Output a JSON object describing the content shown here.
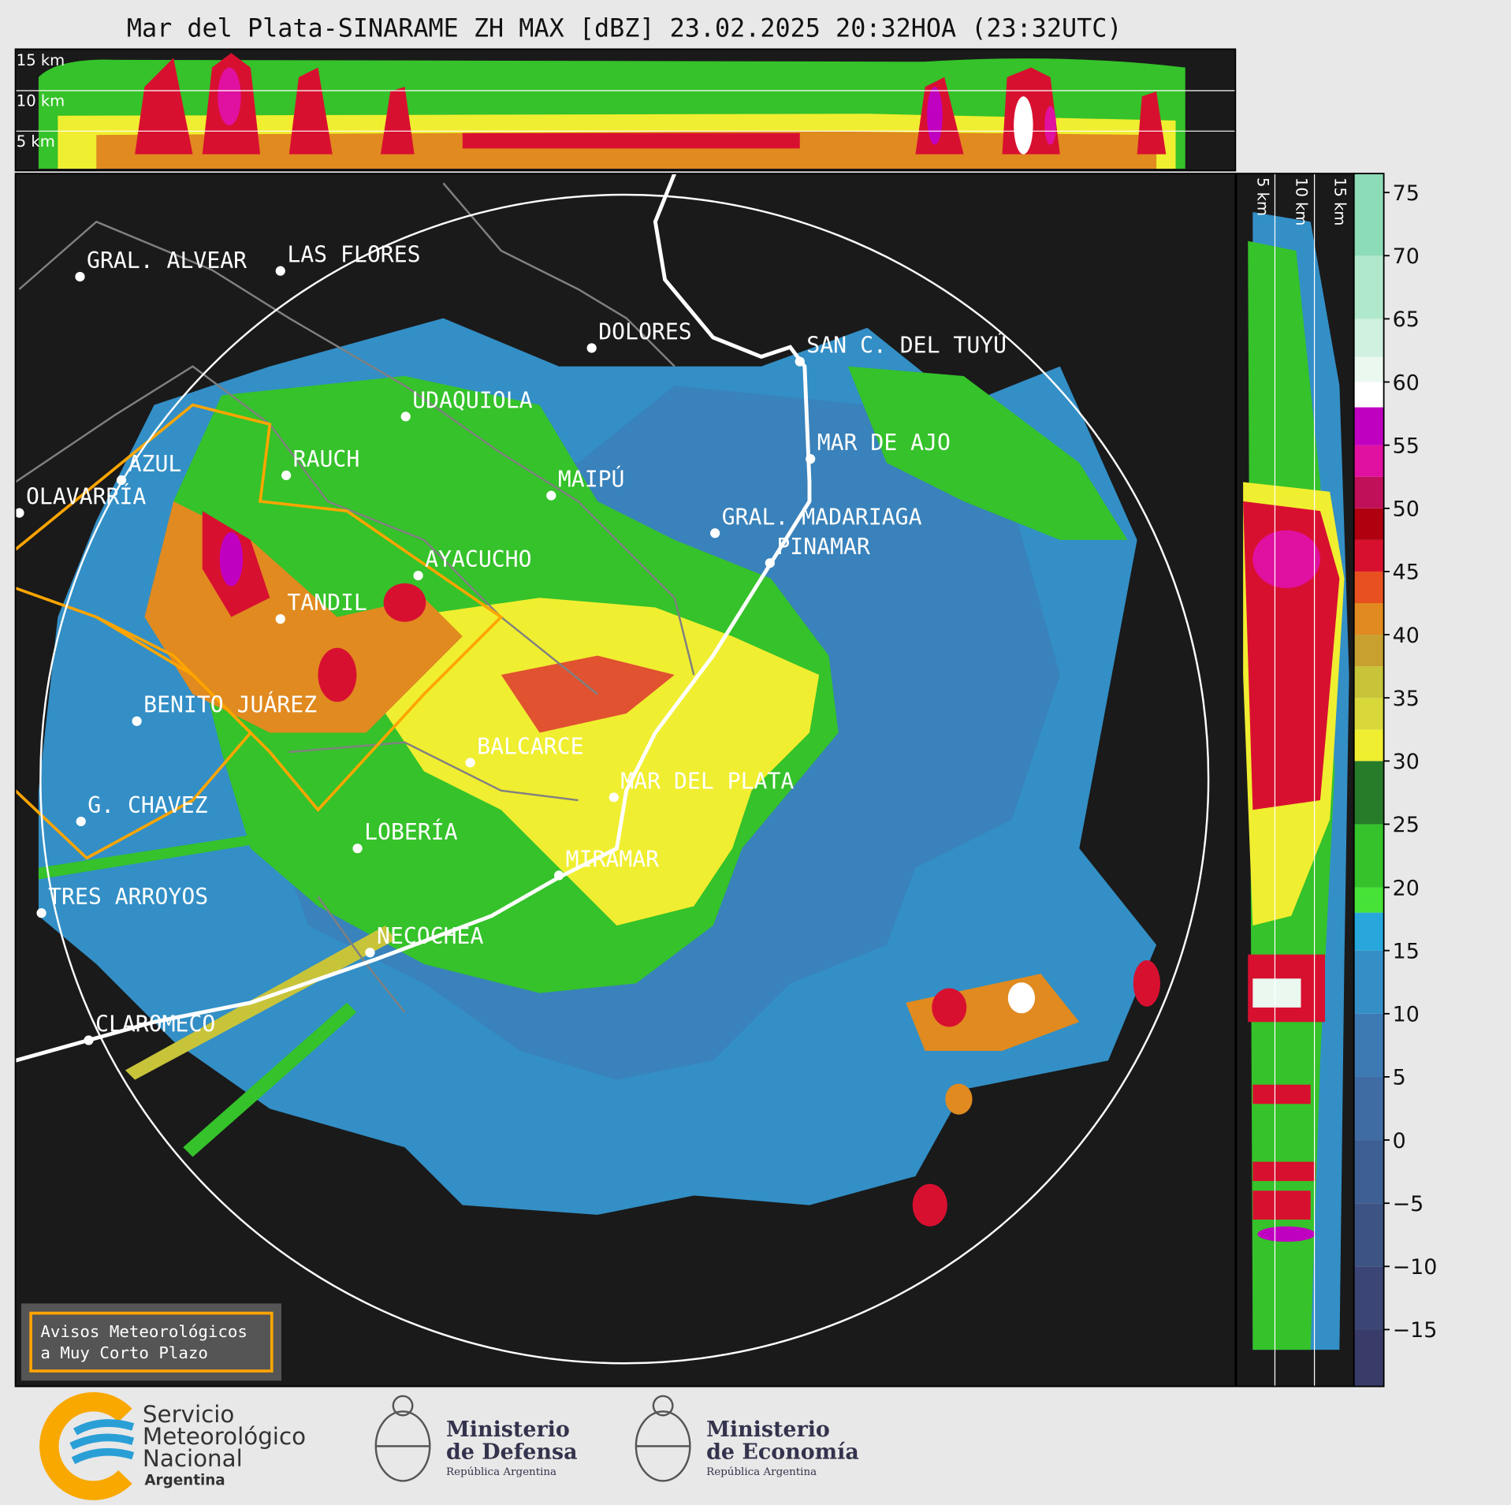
{
  "title": "Mar del Plata-SINARAME ZH MAX [dBZ] 23.02.2025 20:32HOA (23:32UTC)",
  "cross_section": {
    "top_labels": [
      "15 km",
      "10 km",
      "5 km"
    ],
    "side_labels": [
      "5 km",
      "10 km",
      "15 km"
    ]
  },
  "colorbar": {
    "clim": [
      -19.5,
      76.5
    ],
    "ticks": [
      75,
      70,
      65,
      60,
      55,
      50,
      45,
      40,
      35,
      30,
      25,
      20,
      15,
      10,
      5,
      0,
      {
        "value": -5,
        "label": "−5"
      },
      {
        "value": -10,
        "label": "−10"
      },
      {
        "value": -15,
        "label": "−15"
      }
    ],
    "levels": [
      -19.5,
      -15,
      -10,
      -5,
      0,
      5,
      10,
      15,
      18,
      20,
      25,
      30,
      32.5,
      35,
      37.5,
      40,
      42.5,
      45,
      47.5,
      50,
      52.5,
      55,
      58,
      60,
      62,
      65,
      70,
      76.5
    ],
    "colors": [
      "#393c68",
      "#3b4676",
      "#3c5384",
      "#3d5f93",
      "#3f6ca3",
      "#3d7ab4",
      "#338fc6",
      "#27a7db",
      "#47e237",
      "#35c22a",
      "#267c28",
      "#f0ee30",
      "#d8d83a",
      "#c8c43a",
      "#c8a030",
      "#e08a20",
      "#e85020",
      "#d81030",
      "#b00010",
      "#c0105a",
      "#e010a0",
      "#c000c0",
      "#ffffff",
      "#eaf8f0",
      "#d0f0e0",
      "#b0e8cc",
      "#8cdcb8"
    ]
  },
  "cities": [
    {
      "name": "GRAL. ALVEAR"
    },
    {
      "name": "LAS FLORES"
    },
    {
      "name": "DOLORES"
    },
    {
      "name": "SAN C. DEL TUYÚ"
    },
    {
      "name": "UDAQUIOLA"
    },
    {
      "name": "MAR DE AJO"
    },
    {
      "name": "AZUL"
    },
    {
      "name": "RAUCH"
    },
    {
      "name": "MAIPÚ"
    },
    {
      "name": "OLAVARRÍA"
    },
    {
      "name": "GRAL. MADARIAGA"
    },
    {
      "name": "PINAMAR"
    },
    {
      "name": "AYACUCHO"
    },
    {
      "name": "TANDIL"
    },
    {
      "name": "BENITO JUÁREZ"
    },
    {
      "name": "BALCARCE"
    },
    {
      "name": "MAR DEL PLATA"
    },
    {
      "name": "G. CHAVEZ"
    },
    {
      "name": "LOBERÍA"
    },
    {
      "name": "MIRAMAR"
    },
    {
      "name": "TRES ARROYOS"
    },
    {
      "name": "NECOCHEA"
    },
    {
      "name": "CLAROMECO"
    }
  ],
  "warning": {
    "lines": [
      "Avisos Meteorológicos",
      "a Muy Corto Plazo"
    ]
  },
  "logos": {
    "smn": [
      "Servicio",
      "Meteorológico",
      "Nacional",
      "Argentina"
    ],
    "defensa": [
      "Ministerio",
      "de Defensa",
      "República Argentina"
    ],
    "economia": [
      "Ministerio",
      "de Economía",
      "República Argentina"
    ]
  }
}
